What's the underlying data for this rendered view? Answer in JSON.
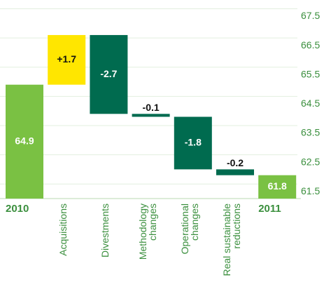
{
  "chart_data": {
    "type": "waterfall",
    "categories": [
      "2010",
      "Acquisitions",
      "Divestments",
      "Methodology changes",
      "Operational changes",
      "Real sustainable reductions",
      "2011"
    ],
    "measures": [
      "absolute",
      "relative",
      "relative",
      "relative",
      "relative",
      "relative",
      "total"
    ],
    "values": [
      64.9,
      1.7,
      -2.7,
      -0.1,
      -1.8,
      -0.2,
      61.8
    ],
    "value_labels": [
      "64.9",
      "+1.7",
      "-2.7",
      "-0.1",
      "-1.8",
      "-0.2",
      "61.8"
    ],
    "colors": [
      "#7ac143",
      "#ffe600",
      "#006b4f",
      "#006b4f",
      "#006b4f",
      "#006b4f",
      "#7ac143"
    ],
    "ylim": [
      61,
      67.8
    ],
    "yticks": [
      61.5,
      62.5,
      63.5,
      64.5,
      65.5,
      66.5,
      67.5
    ],
    "grid": true,
    "y_axis_side": "right"
  }
}
